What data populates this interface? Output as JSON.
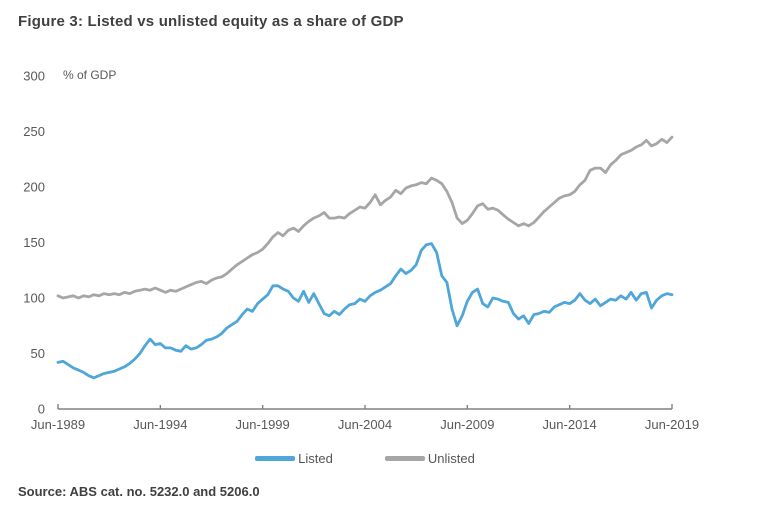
{
  "figure": {
    "title": "Figure 3: Listed vs unlisted equity as a share of GDP",
    "source": "Source: ABS cat. no. 5232.0 and 5206.0"
  },
  "chart_data": {
    "type": "line",
    "title": "Figure 3: Listed vs unlisted equity as a share of GDP",
    "ylabel": "% of GDP",
    "ylim": [
      0,
      300
    ],
    "yticks": [
      0,
      50,
      100,
      150,
      200,
      250,
      300
    ],
    "x_tick_labels": [
      "Jun-1989",
      "Jun-1994",
      "Jun-1999",
      "Jun-2004",
      "Jun-2009",
      "Jun-2014",
      "Jun-2019"
    ],
    "x_start": 1989.5,
    "x_step": 0.25,
    "x_frequency": "quarterly",
    "grid": false,
    "legend_position": "bottom",
    "axis_color": "#808080",
    "text_color": "#595959",
    "series": [
      {
        "name": "Listed",
        "color": "#4FA6D8",
        "values": [
          42,
          43,
          40,
          37,
          35,
          33,
          30,
          28,
          30,
          32,
          33,
          34,
          36,
          38,
          41,
          45,
          50,
          57,
          63,
          58,
          59,
          55,
          55,
          53,
          52,
          57,
          54,
          55,
          58,
          62,
          63,
          65,
          68,
          73,
          76,
          79,
          85,
          90,
          88,
          95,
          99,
          103,
          111,
          111,
          108,
          106,
          100,
          97,
          106,
          96,
          104,
          95,
          86,
          84,
          88,
          85,
          90,
          94,
          95,
          99,
          97,
          102,
          105,
          107,
          110,
          113,
          120,
          126,
          122,
          125,
          130,
          143,
          148,
          149,
          141,
          120,
          114,
          90,
          75,
          84,
          97,
          105,
          108,
          95,
          92,
          100,
          99,
          97,
          96,
          86,
          81,
          84,
          77,
          85,
          86,
          88,
          87,
          92,
          94,
          96,
          95,
          98,
          104,
          98,
          95,
          99,
          93,
          96,
          99,
          98,
          102,
          99,
          105,
          98,
          104,
          105,
          91,
          98,
          102,
          104,
          103
        ]
      },
      {
        "name": "Unlisted",
        "color": "#A6A6A6",
        "values": [
          102,
          100,
          101,
          102,
          100,
          102,
          101,
          103,
          102,
          104,
          103,
          104,
          103,
          105,
          104,
          106,
          107,
          108,
          107,
          109,
          107,
          105,
          107,
          106,
          108,
          110,
          112,
          114,
          115,
          113,
          116,
          118,
          119,
          122,
          126,
          130,
          133,
          136,
          139,
          141,
          144,
          149,
          155,
          159,
          156,
          161,
          163,
          160,
          165,
          169,
          172,
          174,
          177,
          172,
          172,
          173,
          172,
          176,
          179,
          182,
          181,
          186,
          193,
          184,
          188,
          191,
          197,
          194,
          199,
          201,
          202,
          204,
          203,
          208,
          206,
          203,
          196,
          186,
          172,
          167,
          170,
          176,
          183,
          185,
          180,
          181,
          179,
          175,
          171,
          168,
          165,
          167,
          165,
          168,
          173,
          178,
          182,
          186,
          190,
          192,
          193,
          196,
          202,
          206,
          215,
          217,
          217,
          213,
          220,
          224,
          229,
          231,
          233,
          236,
          238,
          242,
          237,
          239,
          243,
          240,
          245
        ]
      }
    ]
  }
}
